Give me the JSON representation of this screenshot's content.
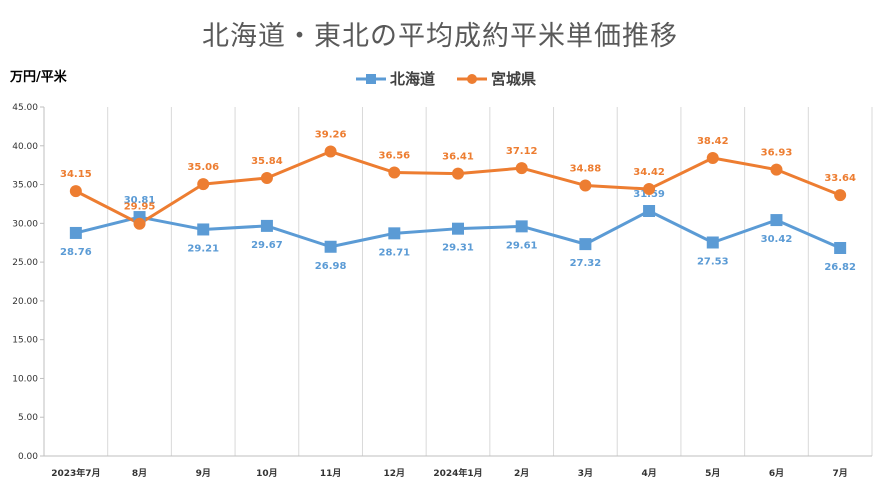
{
  "chart_data": {
    "type": "line",
    "title": "北海道・東北の平均成約平米単価推移",
    "ylabel": "万円/平米",
    "xlabel": "",
    "ylim": [
      0,
      45
    ],
    "yticks": [
      "0.00",
      "5.00",
      "10.00",
      "15.00",
      "20.00",
      "25.00",
      "30.00",
      "35.00",
      "40.00",
      "45.00"
    ],
    "grid": "vertical",
    "legend_position": "top",
    "categories": [
      "2023年7月",
      "8月",
      "9月",
      "10月",
      "11月",
      "12月",
      "2024年1月",
      "2月",
      "3月",
      "4月",
      "5月",
      "6月",
      "7月"
    ],
    "series": [
      {
        "name": "北海道",
        "color": "#5B9BD5",
        "marker": "square",
        "values": [
          28.76,
          30.81,
          29.21,
          29.67,
          26.98,
          28.71,
          29.31,
          29.61,
          27.32,
          31.59,
          27.53,
          30.42,
          26.82
        ],
        "labels": [
          "28.76",
          "30.81",
          "29.21",
          "29.67",
          "26.98",
          "28.71",
          "29.31",
          "29.61",
          "27.32",
          "31.59",
          "27.53",
          "30.42",
          "26.82"
        ]
      },
      {
        "name": "宮城県",
        "color": "#ED7D31",
        "marker": "circle",
        "values": [
          34.15,
          29.95,
          35.06,
          35.84,
          39.26,
          36.56,
          36.41,
          37.12,
          34.88,
          34.42,
          38.42,
          36.93,
          33.64
        ],
        "labels": [
          "34.15",
          "29.95",
          "35.06",
          "35.84",
          "39.26",
          "36.56",
          "36.41",
          "37.12",
          "34.88",
          "34.42",
          "38.42",
          "36.93",
          "33.64"
        ]
      }
    ]
  }
}
